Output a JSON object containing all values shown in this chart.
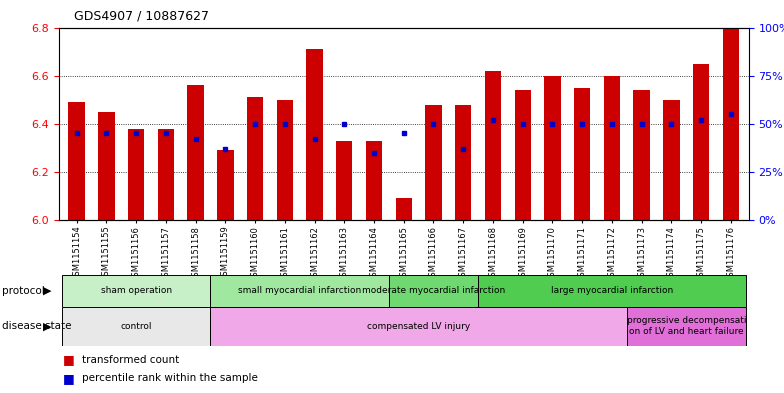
{
  "title": "GDS4907 / 10887627",
  "samples": [
    "GSM1151154",
    "GSM1151155",
    "GSM1151156",
    "GSM1151157",
    "GSM1151158",
    "GSM1151159",
    "GSM1151160",
    "GSM1151161",
    "GSM1151162",
    "GSM1151163",
    "GSM1151164",
    "GSM1151165",
    "GSM1151166",
    "GSM1151167",
    "GSM1151168",
    "GSM1151169",
    "GSM1151170",
    "GSM1151171",
    "GSM1151172",
    "GSM1151173",
    "GSM1151174",
    "GSM1151175",
    "GSM1151176"
  ],
  "transformed_count": [
    6.49,
    6.45,
    6.38,
    6.38,
    6.56,
    6.29,
    6.51,
    6.5,
    6.71,
    6.33,
    6.33,
    6.09,
    6.48,
    6.48,
    6.62,
    6.54,
    6.6,
    6.55,
    6.6,
    6.54,
    6.5,
    6.65,
    6.8
  ],
  "percentile_rank": [
    45,
    45,
    45,
    45,
    42,
    37,
    50,
    50,
    42,
    50,
    35,
    45,
    50,
    37,
    52,
    50,
    50,
    50,
    50,
    50,
    50,
    52,
    55
  ],
  "ylim_left": [
    6.0,
    6.8
  ],
  "ylim_right": [
    0,
    100
  ],
  "yticks_left": [
    6.0,
    6.2,
    6.4,
    6.6,
    6.8
  ],
  "yticks_right": [
    0,
    25,
    50,
    75,
    100
  ],
  "bar_color": "#cc0000",
  "dot_color": "#0000cc",
  "protocol_groups": [
    {
      "label": "sham operation",
      "start": 0,
      "end": 4,
      "color": "#c8f0c8"
    },
    {
      "label": "small myocardial infarction",
      "start": 5,
      "end": 10,
      "color": "#a0e8a0"
    },
    {
      "label": "moderate myocardial infarction",
      "start": 11,
      "end": 13,
      "color": "#70d870"
    },
    {
      "label": "large myocardial infarction",
      "start": 14,
      "end": 22,
      "color": "#50cc50"
    }
  ],
  "disease_groups": [
    {
      "label": "control",
      "start": 0,
      "end": 4,
      "color": "#e8e8e8"
    },
    {
      "label": "compensated LV injury",
      "start": 5,
      "end": 18,
      "color": "#f0a8e8"
    },
    {
      "label": "progressive decompensati\non of LV and heart failure",
      "start": 19,
      "end": 22,
      "color": "#e070d8"
    }
  ]
}
